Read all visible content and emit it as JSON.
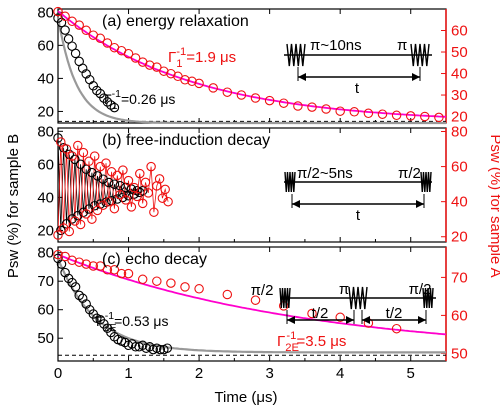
{
  "figure": {
    "shared_xlabel": "Time (μs)",
    "left_ylabel": "Psw (%) for sample B",
    "right_ylabel": "Psw (%) for sample A",
    "colors": {
      "sample_B_points": "#000000",
      "sample_A_points": "#ee1111",
      "sample_A_fit": "#ff00cc",
      "sample_B_fit": "#999999",
      "axis_right": "#ee1111",
      "axis_left": "#000000"
    }
  },
  "chart_data": [
    {
      "type": "scatter",
      "panel_label": "(a) energy relaxation",
      "xlim": [
        0,
        5.5
      ],
      "x_ticks": [
        0,
        1,
        2,
        3,
        4,
        5
      ],
      "left_ylim": [
        13,
        82
      ],
      "left_ticks": [
        20,
        40,
        60,
        80
      ],
      "right_ylim": [
        17,
        70
      ],
      "right_ticks": [
        20,
        30,
        40,
        50,
        60
      ],
      "pulse_labels": [
        "π~10ns",
        "π",
        "t"
      ],
      "series": [
        {
          "name": "Sample B",
          "axis": "left",
          "x": [
            0.0,
            0.05,
            0.1,
            0.15,
            0.2,
            0.25,
            0.3,
            0.35,
            0.4,
            0.45,
            0.5,
            0.55,
            0.6,
            0.65,
            0.7,
            0.75,
            0.8
          ],
          "y": [
            76.5,
            73.8,
            69.2,
            63.9,
            59.5,
            55.1,
            50.3,
            46.1,
            42.7,
            39.2,
            35.5,
            32.7,
            30.8,
            28.1,
            25.8,
            23.9,
            22.3
          ]
        },
        {
          "name": "Sample A",
          "axis": "right",
          "x": [
            0.0,
            0.1,
            0.2,
            0.3,
            0.4,
            0.5,
            0.6,
            0.7,
            0.8,
            0.9,
            1.0,
            1.1,
            1.2,
            1.3,
            1.4,
            1.5,
            1.6,
            1.7,
            1.8,
            1.9,
            2.0,
            2.2,
            2.4,
            2.6,
            2.8,
            3.0,
            3.2,
            3.4,
            3.6,
            3.8,
            4.0,
            4.2,
            4.4,
            4.6,
            4.8,
            5.0,
            5.2,
            5.4
          ],
          "y": [
            68.8,
            66.6,
            64.3,
            62.5,
            60.1,
            57.8,
            56.4,
            54.2,
            52.0,
            50.6,
            49.2,
            47.2,
            45.3,
            43.9,
            43.0,
            41.1,
            39.9,
            38.7,
            37.1,
            36.4,
            35.4,
            33.3,
            31.3,
            30.0,
            28.6,
            27.4,
            26.2,
            24.9,
            24.4,
            23.5,
            22.5,
            22.2,
            21.5,
            21.1,
            20.6,
            20.3,
            20.0,
            19.6
          ]
        }
      ],
      "fits": [
        {
          "name": "Sample A fit",
          "axis": "right",
          "formula": "exp",
          "amplitude": 52.0,
          "rate": 0.5263,
          "offset": 17.0
        },
        {
          "name": "Sample B fit",
          "axis": "left",
          "formula": "exp",
          "amplitude": 64.0,
          "rate": 3.846,
          "offset": 13.0
        }
      ],
      "baseline": {
        "axis": "left",
        "y": 14
      },
      "annotations": [
        {
          "text": "Γ",
          "sub": "1",
          "sup": "-1",
          "value": "=1.9 μs",
          "color": "red"
        },
        {
          "text": "Γ",
          "sub": "1",
          "sup": "-1",
          "value": "=0.26 μs",
          "color": "black"
        }
      ]
    },
    {
      "type": "scatter",
      "panel_label": "(b) free-induction decay",
      "xlim": [
        0,
        5.5
      ],
      "x_ticks": [
        0,
        1,
        2,
        3,
        4,
        5
      ],
      "left_ylim": [
        13,
        82
      ],
      "left_ticks": [
        20,
        40,
        60,
        80
      ],
      "right_ylim": [
        17,
        82
      ],
      "right_ticks": [
        20,
        40,
        60,
        80
      ],
      "pulse_labels": [
        "π/2~5ns",
        "π/2",
        "t"
      ],
      "series": [
        {
          "name": "Sample B",
          "axis": "left",
          "x": [
            0.0,
            0.04,
            0.08,
            0.12,
            0.16,
            0.2,
            0.24,
            0.28,
            0.32,
            0.36,
            0.4,
            0.44,
            0.48,
            0.52,
            0.56,
            0.6,
            0.64,
            0.68,
            0.72,
            0.76,
            0.8,
            0.84,
            0.88,
            0.92,
            0.96,
            1.0,
            1.04,
            1.08,
            1.12,
            1.16,
            1.2
          ],
          "y": [
            76.0,
            20.0,
            70.0,
            24.0,
            66.0,
            27.0,
            63.0,
            29.0,
            60.0,
            31.0,
            57.0,
            33.0,
            55.0,
            35.0,
            53.0,
            36.0,
            51.0,
            37.0,
            49.0,
            38.0,
            48.0,
            39.0,
            47.0,
            40.0,
            46.0,
            41.0,
            45.0,
            42.0,
            44.0,
            43.0,
            44.0
          ]
        },
        {
          "name": "Sample A",
          "axis": "right",
          "x": [
            0.0,
            0.04,
            0.08,
            0.12,
            0.16,
            0.2,
            0.24,
            0.28,
            0.32,
            0.36,
            0.4,
            0.44,
            0.48,
            0.52,
            0.56,
            0.6,
            0.64,
            0.68,
            0.72,
            0.76,
            0.8,
            0.84,
            0.88,
            0.92,
            0.96,
            1.0,
            1.04,
            1.08,
            1.12,
            1.16,
            1.2,
            1.24,
            1.28,
            1.32,
            1.36,
            1.4,
            1.44,
            1.48,
            1.52,
            1.56
          ],
          "y": [
            21.0,
            74.0,
            25.0,
            70.0,
            23.0,
            66.0,
            29.0,
            72.0,
            27.0,
            68.0,
            33.0,
            63.0,
            30.0,
            66.0,
            35.0,
            60.0,
            38.0,
            62.0,
            40.0,
            57.0,
            36.0,
            55.0,
            44.0,
            58.0,
            41.0,
            52.0,
            37.0,
            48.0,
            43.0,
            56.0,
            39.0,
            51.0,
            45.0,
            60.0,
            34.0,
            49.0,
            53.0,
            42.0,
            47.0,
            40.0
          ]
        }
      ]
    },
    {
      "type": "scatter",
      "panel_label": "(c) echo decay",
      "xlim": [
        0,
        5.5
      ],
      "x_ticks": [
        0,
        1,
        2,
        3,
        4,
        5
      ],
      "left_ylim": [
        42,
        82
      ],
      "left_ticks": [
        50,
        60,
        70,
        80
      ],
      "right_ylim": [
        48,
        78
      ],
      "right_ticks": [
        50,
        60,
        70
      ],
      "pulse_labels": [
        "π/2",
        "π",
        "π/2",
        "t/2",
        "t/2"
      ],
      "series": [
        {
          "name": "Sample B",
          "axis": "left",
          "x": [
            0.0,
            0.05,
            0.1,
            0.15,
            0.2,
            0.25,
            0.3,
            0.35,
            0.4,
            0.45,
            0.5,
            0.55,
            0.6,
            0.65,
            0.7,
            0.75,
            0.8,
            0.85,
            0.9,
            0.95,
            1.0,
            1.05,
            1.1,
            1.15,
            1.2,
            1.25,
            1.3,
            1.35,
            1.4,
            1.45,
            1.5,
            1.55
          ],
          "y": [
            78.0,
            76.0,
            73.0,
            71.0,
            69.5,
            68.0,
            65.0,
            64.0,
            62.0,
            60.0,
            58.5,
            57.0,
            56.5,
            55.0,
            53.5,
            52.0,
            50.5,
            49.5,
            49.0,
            48.5,
            47.5,
            48.0,
            47.0,
            47.0,
            47.5,
            46.5,
            47.0,
            46.0,
            46.5,
            46.0,
            46.0,
            46.5
          ]
        },
        {
          "name": "Sample A",
          "axis": "right",
          "x": [
            0.0,
            0.1,
            0.2,
            0.3,
            0.4,
            0.5,
            0.6,
            0.7,
            0.8,
            0.9,
            1.0,
            1.2,
            1.4,
            1.6,
            1.8,
            2.0,
            2.4,
            2.8,
            3.2,
            3.6,
            4.0,
            4.4,
            4.8
          ],
          "y": [
            76.0,
            75.5,
            74.5,
            74.0,
            73.5,
            73.0,
            73.0,
            72.0,
            72.0,
            71.0,
            71.0,
            69.5,
            69.0,
            68.5,
            67.5,
            67.0,
            65.5,
            64.0,
            62.5,
            60.5,
            59.5,
            58.0,
            56.5
          ]
        }
      ],
      "fits": [
        {
          "name": "Sample A fit",
          "axis": "right",
          "formula": "exp",
          "amplitude": 26.5,
          "rate": 0.2857,
          "offset": 49.5
        },
        {
          "name": "Sample B fit",
          "axis": "left",
          "formula": "exp",
          "amplitude": 33.0,
          "rate": 1.887,
          "offset": 45.0
        }
      ],
      "baseline": {
        "axis": "left",
        "y": 44
      },
      "annotations": [
        {
          "text": "Γ",
          "sub": "2E",
          "sup": "-1",
          "value": "=0.53 μs",
          "color": "black"
        },
        {
          "text": "Γ",
          "sub": "2E",
          "sup": "-1",
          "value": "=3.5 μs",
          "color": "red"
        }
      ]
    }
  ]
}
